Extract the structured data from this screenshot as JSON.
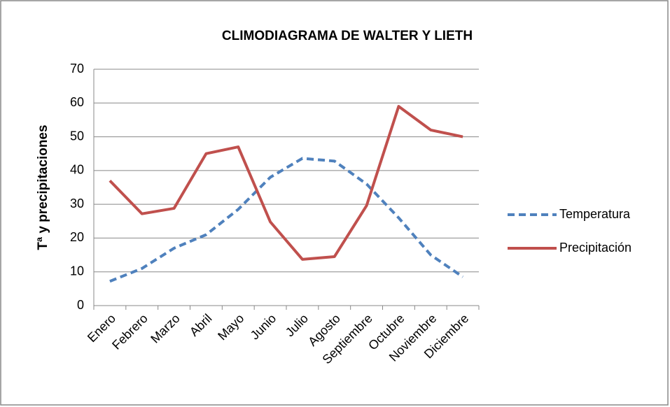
{
  "chart_data": {
    "type": "line",
    "title": "CLIMODIAGRAMA DE WALTER Y LIETH",
    "ylabel": "Tª y precipitaciones",
    "categories": [
      "Enero",
      "Febrero",
      "Marzo",
      "Abril",
      "Mayo",
      "Junio",
      "Julio",
      "Agosto",
      "Septiembre",
      "Octubre",
      "Noviembre",
      "Diciembre"
    ],
    "series": [
      {
        "name": "Temperatura",
        "color": "#4f81bd",
        "line_style": "dashed",
        "values": [
          7.2,
          11,
          17,
          21,
          28.5,
          38,
          43.6,
          42.8,
          36,
          26,
          15,
          8.5
        ]
      },
      {
        "name": "Precipitación",
        "color": "#c0504d",
        "line_style": "solid",
        "values": [
          37,
          27.2,
          28.8,
          45,
          47,
          24.8,
          13.7,
          14.5,
          29.6,
          59,
          52,
          50
        ]
      }
    ],
    "ylim": [
      0,
      70
    ],
    "yticks": [
      0,
      10,
      20,
      30,
      40,
      50,
      60,
      70
    ],
    "grid": true,
    "legend": "right"
  }
}
